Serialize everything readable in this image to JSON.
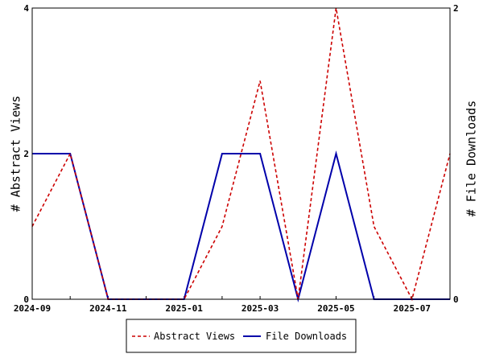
{
  "chart_data": {
    "type": "line",
    "x": [
      "2024-09",
      "2024-10",
      "2024-11",
      "2024-12",
      "2025-01",
      "2025-02",
      "2025-03",
      "2025-04",
      "2025-05",
      "2025-06",
      "2025-07",
      "2025-08"
    ],
    "x_tick_labels": [
      "2024-09",
      "2024-11",
      "2025-01",
      "2025-03",
      "2025-05",
      "2025-07"
    ],
    "series": [
      {
        "name": "Abstract Views",
        "axis": "left",
        "color": "#cc0000",
        "dash": "dashed",
        "values": [
          1,
          2,
          0,
          0,
          0,
          1,
          3,
          0,
          4,
          1,
          0,
          2
        ]
      },
      {
        "name": "File Downloads",
        "axis": "right",
        "color": "#0000aa",
        "dash": "solid",
        "values": [
          1,
          1,
          0,
          0,
          0,
          1,
          1,
          0,
          1,
          0,
          0,
          0
        ]
      }
    ],
    "ylabel": "# Abstract Views",
    "ylim": [
      0,
      4
    ],
    "y_ticks": [
      "0",
      "2",
      "4"
    ],
    "y2label": "# File Downloads",
    "y2lim": [
      0,
      2
    ],
    "y2_ticks": [
      "0",
      "2"
    ],
    "grid": false,
    "legend_position": "bottom"
  }
}
